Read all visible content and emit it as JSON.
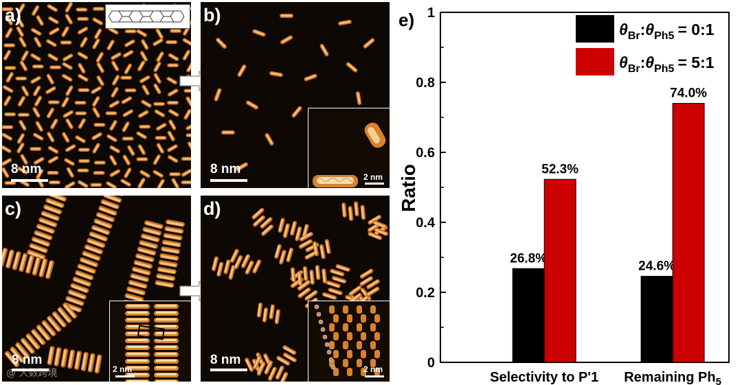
{
  "figure": {
    "panels": [
      {
        "label": "a)",
        "scale_bar": "8 nm"
      },
      {
        "label": "b)",
        "scale_bar": "8 nm",
        "inset_scale_bar": "2 nm"
      },
      {
        "label": "c)",
        "scale_bar": "8 nm",
        "inset_scale_bar": "2 nm"
      },
      {
        "label": "d)",
        "scale_bar": "8 nm",
        "inset_scale_bar": "2 nm"
      }
    ],
    "watermark": "@ 大数跨境"
  },
  "colors": {
    "black_bar": "#000000",
    "red_bar": "#cc0000",
    "stm_orange": "#d9822b",
    "stm_bright": "#f8dcaa",
    "stm_bg": "#0d0803"
  },
  "chart_data": {
    "type": "bar",
    "panel_label": "e)",
    "title": "",
    "xlabel": "",
    "ylabel": "Ratio",
    "ylim": [
      0,
      1
    ],
    "yticks": [
      "0",
      "0.2",
      "0.4",
      "0.6",
      "0.8",
      "1"
    ],
    "categories": [
      "Selectivity to P'1",
      "Remaining Ph5"
    ],
    "category_labels": {
      "main": [
        "Selectivity to P'1",
        "Remaining Ph"
      ],
      "subscript": [
        "",
        "5"
      ]
    },
    "series": [
      {
        "name": "θBr:θPh5 = 0:1",
        "color": "#000000",
        "values": [
          0.268,
          0.246
        ],
        "data_labels": [
          "26.8%",
          "24.6%"
        ]
      },
      {
        "name": "θBr:θPh5 = 5:1",
        "color": "#cc0000",
        "values": [
          0.523,
          0.74
        ],
        "data_labels": [
          "52.3%",
          "74.0%"
        ]
      }
    ],
    "legend": [
      {
        "theta": "θ",
        "sub1": "Br",
        "sep": ":",
        "theta2": "θ",
        "sub2": "Ph5",
        "ratio": "= 0:1"
      },
      {
        "theta": "θ",
        "sub1": "Br",
        "sep": ":",
        "theta2": "θ",
        "sub2": "Ph5",
        "ratio": "= 5:1"
      }
    ],
    "legend_position": "top-right"
  }
}
